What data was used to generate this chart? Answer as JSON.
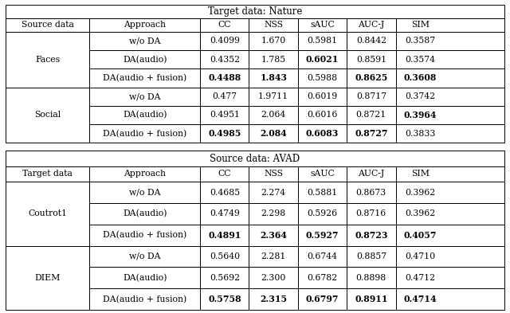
{
  "table1_title": "Target data: Nature",
  "table1_col1_header": "Source data",
  "table1_headers": [
    "Approach",
    "CC",
    "NSS",
    "sAUC",
    "AUC-J",
    "SIM"
  ],
  "table1_groups": [
    {
      "group": "Faces",
      "rows": [
        [
          "w/o DA",
          "0.4099",
          "1.670",
          "0.5981",
          "0.8442",
          "0.3587"
        ],
        [
          "DA(audio)",
          "0.4352",
          "1.785",
          "0.6021",
          "0.8591",
          "0.3574"
        ],
        [
          "DA(audio + fusion)",
          "0.4488",
          "1.843",
          "0.5988",
          "0.8625",
          "0.3608"
        ]
      ],
      "bold": [
        [
          false,
          false,
          false,
          false,
          false,
          false
        ],
        [
          false,
          false,
          false,
          true,
          false,
          false
        ],
        [
          false,
          true,
          true,
          false,
          true,
          true
        ]
      ]
    },
    {
      "group": "Social",
      "rows": [
        [
          "w/o DA",
          "0.477",
          "1.9711",
          "0.6019",
          "0.8717",
          "0.3742"
        ],
        [
          "DA(audio)",
          "0.4951",
          "2.064",
          "0.6016",
          "0.8721",
          "0.3964"
        ],
        [
          "DA(audio + fusion)",
          "0.4985",
          "2.084",
          "0.6083",
          "0.8727",
          "0.3833"
        ]
      ],
      "bold": [
        [
          false,
          false,
          false,
          false,
          false,
          false
        ],
        [
          false,
          false,
          false,
          false,
          false,
          true
        ],
        [
          false,
          true,
          true,
          true,
          true,
          false
        ]
      ]
    }
  ],
  "table2_title": "Source data: AVAD",
  "table2_col1_header": "Target data",
  "table2_headers": [
    "Approach",
    "CC",
    "NSS",
    "sAUC",
    "AUC-J",
    "SIM"
  ],
  "table2_groups": [
    {
      "group": "Coutrot1",
      "rows": [
        [
          "w/o DA",
          "0.4685",
          "2.274",
          "0.5881",
          "0.8673",
          "0.3962"
        ],
        [
          "DA(audio)",
          "0.4749",
          "2.298",
          "0.5926",
          "0.8716",
          "0.3962"
        ],
        [
          "DA(audio + fusion)",
          "0.4891",
          "2.364",
          "0.5927",
          "0.8723",
          "0.4057"
        ]
      ],
      "bold": [
        [
          false,
          false,
          false,
          false,
          false,
          false
        ],
        [
          false,
          false,
          false,
          false,
          false,
          false
        ],
        [
          false,
          true,
          true,
          true,
          true,
          true
        ]
      ]
    },
    {
      "group": "DIEM",
      "rows": [
        [
          "w/o DA",
          "0.5640",
          "2.281",
          "0.6744",
          "0.8857",
          "0.4710"
        ],
        [
          "DA(audio)",
          "0.5692",
          "2.300",
          "0.6782",
          "0.8898",
          "0.4712"
        ],
        [
          "DA(audio + fusion)",
          "0.5758",
          "2.315",
          "0.6797",
          "0.8911",
          "0.4714"
        ]
      ],
      "bold": [
        [
          false,
          false,
          false,
          false,
          false,
          false
        ],
        [
          false,
          false,
          false,
          false,
          false,
          false
        ],
        [
          false,
          true,
          true,
          true,
          true,
          true
        ]
      ]
    }
  ],
  "font_size": 7.8,
  "title_font_size": 8.5,
  "lw": 0.7
}
